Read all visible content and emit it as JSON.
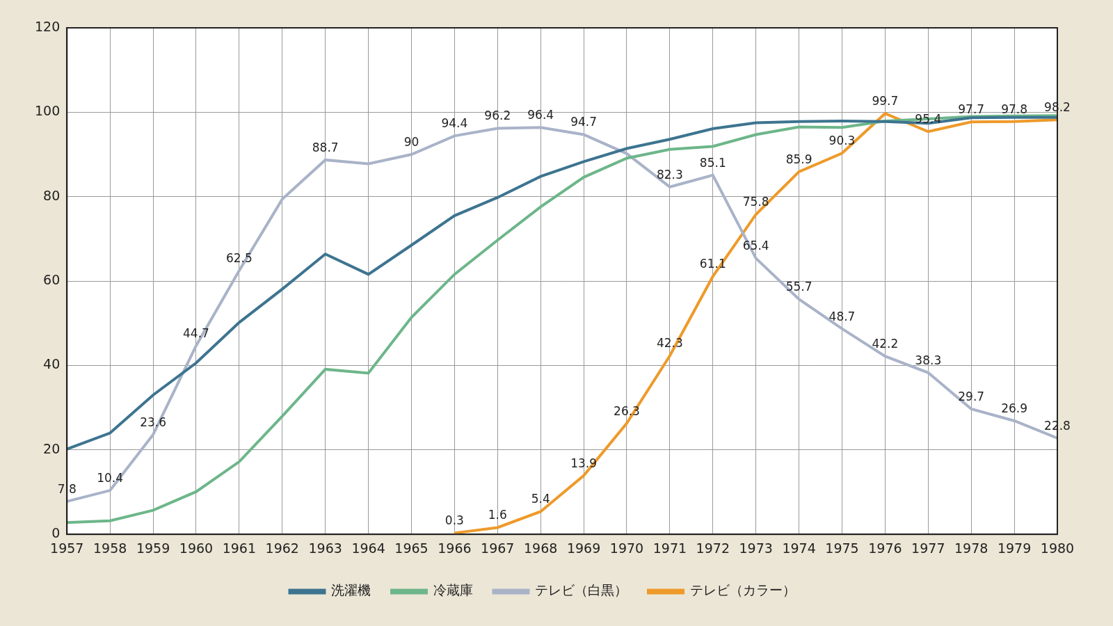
{
  "chart_data": {
    "type": "line",
    "categories": [
      "1957",
      "1958",
      "1959",
      "1960",
      "1961",
      "1962",
      "1963",
      "1964",
      "1965",
      "1966",
      "1967",
      "1968",
      "1969",
      "1970",
      "1971",
      "1972",
      "1973",
      "1974",
      "1975",
      "1976",
      "1977",
      "1978",
      "1979",
      "1980"
    ],
    "series": [
      {
        "name": "洗濯機",
        "color": "#3d7490",
        "values": [
          20.2,
          24.0,
          33.0,
          40.6,
          50.2,
          58.1,
          66.4,
          61.6,
          68.5,
          75.5,
          79.8,
          84.8,
          88.3,
          91.4,
          93.6,
          96.1,
          97.5,
          97.8,
          97.9,
          97.8,
          97.4,
          98.7,
          98.8,
          98.8
        ]
      },
      {
        "name": "冷蔵庫",
        "color": "#6db68a",
        "values": [
          2.8,
          3.2,
          5.7,
          10.1,
          17.2,
          28.0,
          39.1,
          38.2,
          51.4,
          61.6,
          69.7,
          77.6,
          84.6,
          89.1,
          91.2,
          91.9,
          94.7,
          96.5,
          96.4,
          97.9,
          98.4,
          99.0,
          99.1,
          99.2
        ]
      },
      {
        "name": "テレビ（白黒）",
        "color": "#a9b3c8",
        "values": [
          7.8,
          10.4,
          23.6,
          44.7,
          62.5,
          79.4,
          88.7,
          87.8,
          90,
          94.4,
          96.2,
          96.4,
          94.7,
          90.2,
          82.3,
          85.1,
          65.4,
          55.7,
          48.7,
          42.2,
          38.3,
          29.7,
          26.9,
          22.8
        ],
        "value_labels": [
          "7.8",
          "10.4",
          "23.6",
          "44.7",
          "62.5",
          null,
          "88.7",
          null,
          "90",
          "94.4",
          "96.2",
          "96.4",
          "94.7",
          null,
          "82.3",
          "85.1",
          "65.4",
          "55.7",
          "48.7",
          "42.2",
          "38.3",
          "29.7",
          "26.9",
          "22.8"
        ]
      },
      {
        "name": "テレビ（カラー）",
        "color": "#ee9a2a",
        "values": [
          null,
          null,
          null,
          null,
          null,
          null,
          null,
          null,
          null,
          0.3,
          1.6,
          5.4,
          13.9,
          26.3,
          42.3,
          61.1,
          75.8,
          85.9,
          90.3,
          99.7,
          95.4,
          97.7,
          97.8,
          98.2
        ],
        "value_labels": [
          null,
          null,
          null,
          null,
          null,
          null,
          null,
          null,
          null,
          "0.3",
          "1.6",
          "5.4",
          "13.9",
          "26.3",
          "42.3",
          "61.1",
          "75.8",
          "85.9",
          "90.3",
          "99.7",
          "95.4",
          "97.7",
          "97.8",
          "98.2"
        ]
      }
    ],
    "ylim": [
      0,
      120
    ],
    "yticks": [
      0,
      20,
      40,
      60,
      80,
      100,
      120
    ],
    "grid": true,
    "legend": "bottom",
    "data_labels": true
  }
}
